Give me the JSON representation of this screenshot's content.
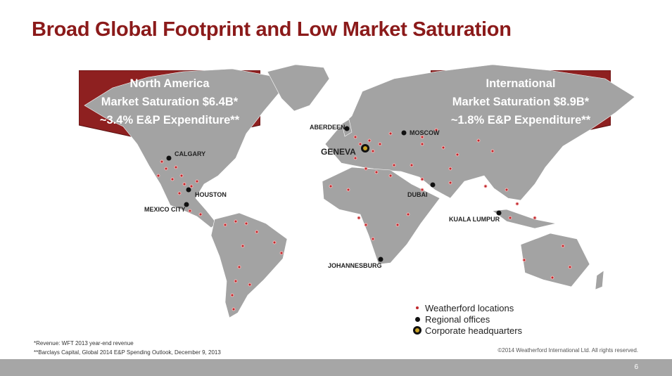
{
  "title": "Broad Global Footprint and Low Market Saturation",
  "callouts": {
    "north_america": {
      "line1": "North America",
      "line2": "Market Saturation $6.4B*",
      "line3": "~3.4% E&P Expenditure**"
    },
    "international": {
      "line1": "International",
      "line2": "Market Saturation $8.9B*",
      "line3": "~1.8% E&P Expenditure**"
    }
  },
  "cities": {
    "calgary": "CALGARY",
    "houston": "HOUSTON",
    "mexico_city": "MEXICO CITY",
    "aberdeen": "ABERDEEN",
    "geneva": "GENEVA",
    "moscow": "MOSCOW",
    "dubai": "DUBAI",
    "kuala_lumpur": "KUALA LUMPUR",
    "johannesburg": "JOHANNESBURG"
  },
  "legend": {
    "locations": "Weatherford locations",
    "regional": "Regional offices",
    "hq": "Corporate headquarters"
  },
  "footnotes": {
    "revenue": "*Revenue: WFT 2013 year-end revenue",
    "barclays": "**Barclays Capital, Global 2014 E&P Spending Outlook, December 9, 2013"
  },
  "copyright": "©2014 Weatherford International Ltd.  All rights reserved.",
  "page_number": "6",
  "colors": {
    "brand": "#8b1a1a",
    "callout": "#8e2020",
    "land": "#a3a3a3",
    "location_dot": "#c0282d"
  }
}
